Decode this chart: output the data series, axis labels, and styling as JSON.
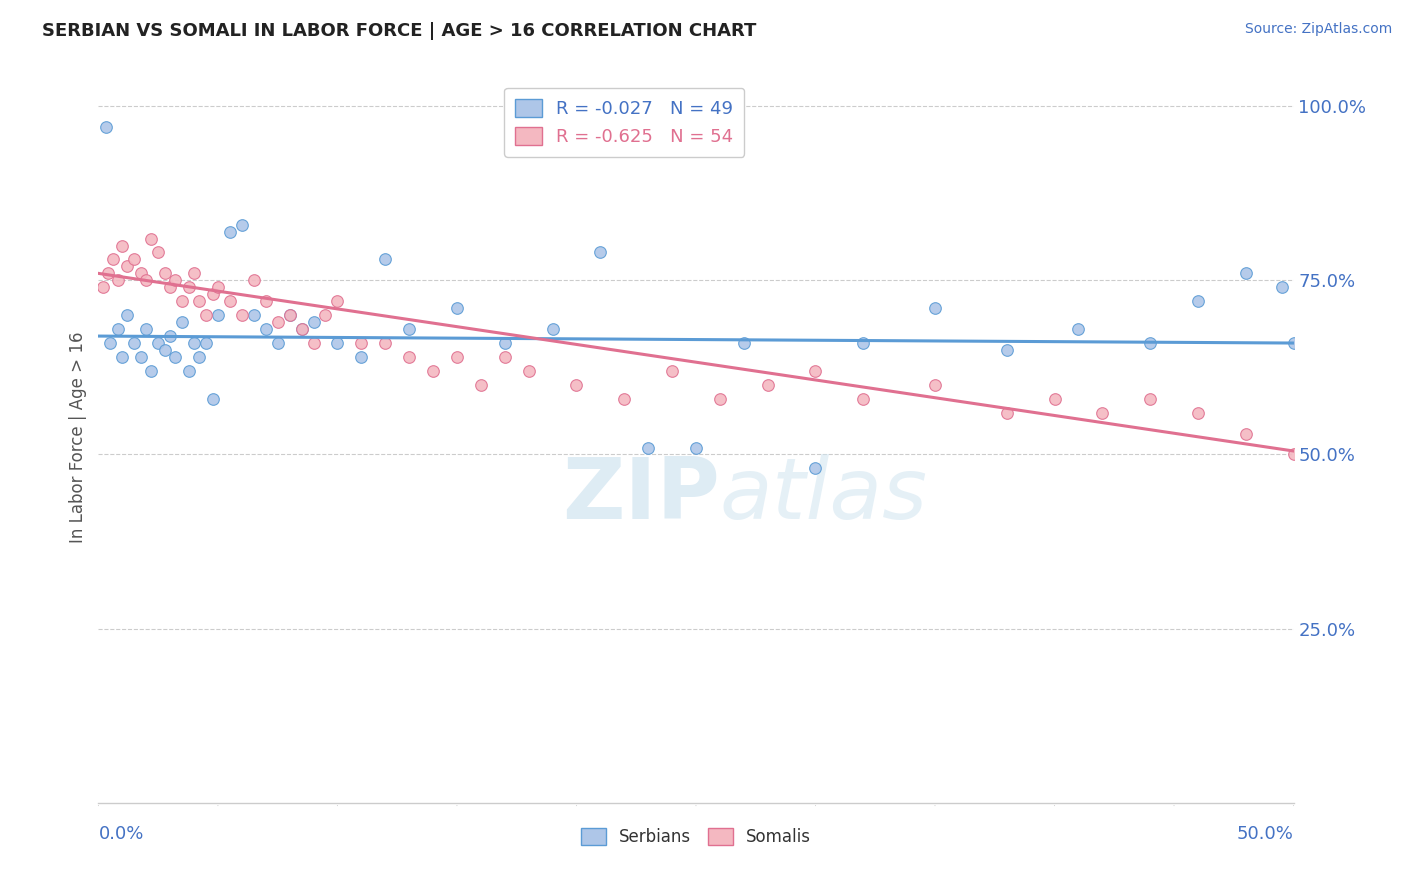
{
  "title": "SERBIAN VS SOMALI IN LABOR FORCE | AGE > 16 CORRELATION CHART",
  "source_text": "Source: ZipAtlas.com",
  "ylabel": "In Labor Force | Age > 16",
  "ytick_positions": [
    0.25,
    0.5,
    0.75,
    1.0
  ],
  "ytick_labels": [
    "25.0%",
    "50.0%",
    "75.0%",
    "100.0%"
  ],
  "xlim": [
    0.0,
    0.5
  ],
  "ylim": [
    0.0,
    1.05
  ],
  "serbian_color": "#aec6e8",
  "somali_color": "#f4b8c1",
  "serbian_edge_color": "#5b9bd5",
  "somali_edge_color": "#e07090",
  "serbian_line_color": "#5b9bd5",
  "somali_line_color": "#e07090",
  "background_color": "#ffffff",
  "grid_color": "#cccccc",
  "title_color": "#222222",
  "axis_label_color": "#4472c4",
  "watermark_color": "#d0e4f0",
  "serbian_R": -0.027,
  "serbian_N": 49,
  "somali_R": -0.625,
  "somali_N": 54,
  "legend_label_serbian": "Serbians",
  "legend_label_somali": "Somalis",
  "serbian_scatter_x": [
    0.003,
    0.005,
    0.008,
    0.01,
    0.012,
    0.015,
    0.018,
    0.02,
    0.022,
    0.025,
    0.028,
    0.03,
    0.032,
    0.035,
    0.038,
    0.04,
    0.042,
    0.045,
    0.048,
    0.05,
    0.055,
    0.06,
    0.065,
    0.07,
    0.075,
    0.08,
    0.085,
    0.09,
    0.1,
    0.11,
    0.12,
    0.13,
    0.15,
    0.17,
    0.19,
    0.21,
    0.23,
    0.25,
    0.27,
    0.3,
    0.32,
    0.35,
    0.38,
    0.41,
    0.44,
    0.46,
    0.48,
    0.495,
    0.5
  ],
  "serbian_scatter_y": [
    0.97,
    0.66,
    0.68,
    0.64,
    0.7,
    0.66,
    0.64,
    0.68,
    0.62,
    0.66,
    0.65,
    0.67,
    0.64,
    0.69,
    0.62,
    0.66,
    0.64,
    0.66,
    0.58,
    0.7,
    0.82,
    0.83,
    0.7,
    0.68,
    0.66,
    0.7,
    0.68,
    0.69,
    0.66,
    0.64,
    0.78,
    0.68,
    0.71,
    0.66,
    0.68,
    0.79,
    0.51,
    0.51,
    0.66,
    0.48,
    0.66,
    0.71,
    0.65,
    0.68,
    0.66,
    0.72,
    0.76,
    0.74,
    0.66
  ],
  "somali_scatter_x": [
    0.002,
    0.004,
    0.006,
    0.008,
    0.01,
    0.012,
    0.015,
    0.018,
    0.02,
    0.022,
    0.025,
    0.028,
    0.03,
    0.032,
    0.035,
    0.038,
    0.04,
    0.042,
    0.045,
    0.048,
    0.05,
    0.055,
    0.06,
    0.065,
    0.07,
    0.075,
    0.08,
    0.085,
    0.09,
    0.095,
    0.1,
    0.11,
    0.12,
    0.13,
    0.14,
    0.15,
    0.16,
    0.17,
    0.18,
    0.2,
    0.22,
    0.24,
    0.26,
    0.28,
    0.3,
    0.32,
    0.35,
    0.38,
    0.4,
    0.42,
    0.44,
    0.46,
    0.48,
    0.5
  ],
  "somali_scatter_y": [
    0.74,
    0.76,
    0.78,
    0.75,
    0.8,
    0.77,
    0.78,
    0.76,
    0.75,
    0.81,
    0.79,
    0.76,
    0.74,
    0.75,
    0.72,
    0.74,
    0.76,
    0.72,
    0.7,
    0.73,
    0.74,
    0.72,
    0.7,
    0.75,
    0.72,
    0.69,
    0.7,
    0.68,
    0.66,
    0.7,
    0.72,
    0.66,
    0.66,
    0.64,
    0.62,
    0.64,
    0.6,
    0.64,
    0.62,
    0.6,
    0.58,
    0.62,
    0.58,
    0.6,
    0.62,
    0.58,
    0.6,
    0.56,
    0.58,
    0.56,
    0.58,
    0.56,
    0.53,
    0.5
  ]
}
